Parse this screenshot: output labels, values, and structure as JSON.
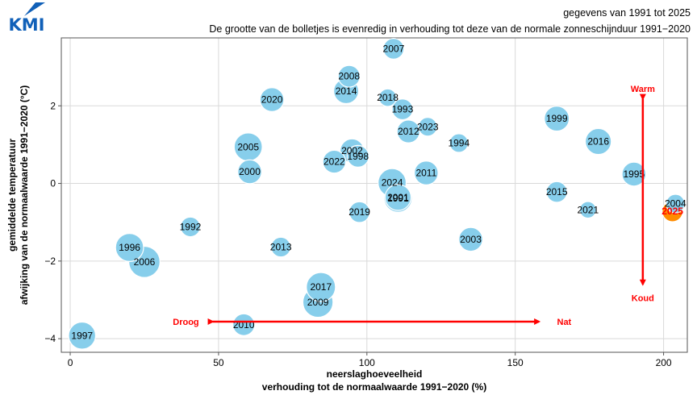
{
  "logo": {
    "text": "KMI",
    "color": "#1060b8"
  },
  "subtitle_line1": "gegevens van 1991 tot 2025",
  "subtitle_line2": "De grootte van de bolletjes is evenredig in verhouding tot deze van de normale zonneschijnduur 1991−2020",
  "colors": {
    "bubble": "#87CEEB",
    "highlight": "#FF8C00",
    "annotation": "#FF0000",
    "grid": "#d9d9d9"
  },
  "annotations": {
    "warm": "Warm",
    "koud": "Koud",
    "droog": "Droog",
    "nat": "Nat"
  },
  "chart_data": {
    "type": "scatter",
    "xlabel_line1": "neerslaghoeveelheid",
    "xlabel_line2": "verhouding tot de normaalwaarde 1991−2020 (%)",
    "ylabel_line1": "gemiddelde temperatuur",
    "ylabel_line2": "afwijking van de normaalwaarde 1991−2020 (°C)",
    "xlim": [
      -3,
      208
    ],
    "ylim": [
      -4.35,
      3.75
    ],
    "xticks": [
      0,
      50,
      100,
      150,
      200
    ],
    "yticks": [
      -4,
      -2,
      0,
      2
    ],
    "ytick_labels": [
      "−4",
      "−2",
      "0",
      "2"
    ],
    "grid": true,
    "points": [
      {
        "year": "1991",
        "x": 110.5,
        "y": -0.38,
        "size": 0.8
      },
      {
        "year": "1992",
        "x": 40.5,
        "y": -1.12,
        "size": 0.4
      },
      {
        "year": "1993",
        "x": 112.0,
        "y": 1.91,
        "size": 0.45
      },
      {
        "year": "1994",
        "x": 131.0,
        "y": 1.04,
        "size": 0.35
      },
      {
        "year": "1995",
        "x": 190.0,
        "y": 0.24,
        "size": 0.6
      },
      {
        "year": "1996",
        "x": 20.0,
        "y": -1.65,
        "size": 0.8
      },
      {
        "year": "1997",
        "x": 4.0,
        "y": -3.92,
        "size": 0.75
      },
      {
        "year": "1998",
        "x": 97.0,
        "y": 0.7,
        "size": 0.5
      },
      {
        "year": "1999",
        "x": 164.0,
        "y": 1.67,
        "size": 0.65
      },
      {
        "year": "2000",
        "x": 60.5,
        "y": 0.3,
        "size": 0.6
      },
      {
        "year": "2001",
        "x": 110.5,
        "y": -0.36,
        "size": 0.7
      },
      {
        "year": "2002",
        "x": 95.0,
        "y": 0.84,
        "size": 0.6
      },
      {
        "year": "2003",
        "x": 135.0,
        "y": -1.44,
        "size": 0.6
      },
      {
        "year": "2004",
        "x": 204.0,
        "y": -0.52,
        "size": 0.35
      },
      {
        "year": "2005",
        "x": 60.0,
        "y": 0.94,
        "size": 0.8
      },
      {
        "year": "2006",
        "x": 25.0,
        "y": -2.02,
        "size": 0.95
      },
      {
        "year": "2007",
        "x": 109.0,
        "y": 3.47,
        "size": 0.45
      },
      {
        "year": "2008",
        "x": 94.0,
        "y": 2.76,
        "size": 0.5
      },
      {
        "year": "2009",
        "x": 83.5,
        "y": -3.06,
        "size": 0.9
      },
      {
        "year": "2010",
        "x": 58.5,
        "y": -3.64,
        "size": 0.5
      },
      {
        "year": "2011",
        "x": 120.0,
        "y": 0.27,
        "size": 0.6
      },
      {
        "year": "2012",
        "x": 114.0,
        "y": 1.34,
        "size": 0.55
      },
      {
        "year": "2013",
        "x": 71.0,
        "y": -1.64,
        "size": 0.4
      },
      {
        "year": "2014",
        "x": 93.0,
        "y": 2.38,
        "size": 0.65
      },
      {
        "year": "2015",
        "x": 164.0,
        "y": -0.22,
        "size": 0.45
      },
      {
        "year": "2016",
        "x": 178.0,
        "y": 1.08,
        "size": 0.7
      },
      {
        "year": "2017",
        "x": 84.5,
        "y": -2.67,
        "size": 0.85
      },
      {
        "year": "2018",
        "x": 107.0,
        "y": 2.21,
        "size": 0.3
      },
      {
        "year": "2019",
        "x": 97.5,
        "y": -0.74,
        "size": 0.45
      },
      {
        "year": "2020",
        "x": 68.0,
        "y": 2.16,
        "size": 0.6
      },
      {
        "year": "2021",
        "x": 174.5,
        "y": -0.68,
        "size": 0.25
      },
      {
        "year": "2022",
        "x": 89.0,
        "y": 0.56,
        "size": 0.55
      },
      {
        "year": "2023",
        "x": 120.5,
        "y": 1.46,
        "size": 0.35
      },
      {
        "year": "2024",
        "x": 108.5,
        "y": 0.02,
        "size": 0.8
      },
      {
        "year": "2025",
        "x": 203.0,
        "y": -0.72,
        "size": 0.45,
        "highlight": true
      }
    ]
  }
}
